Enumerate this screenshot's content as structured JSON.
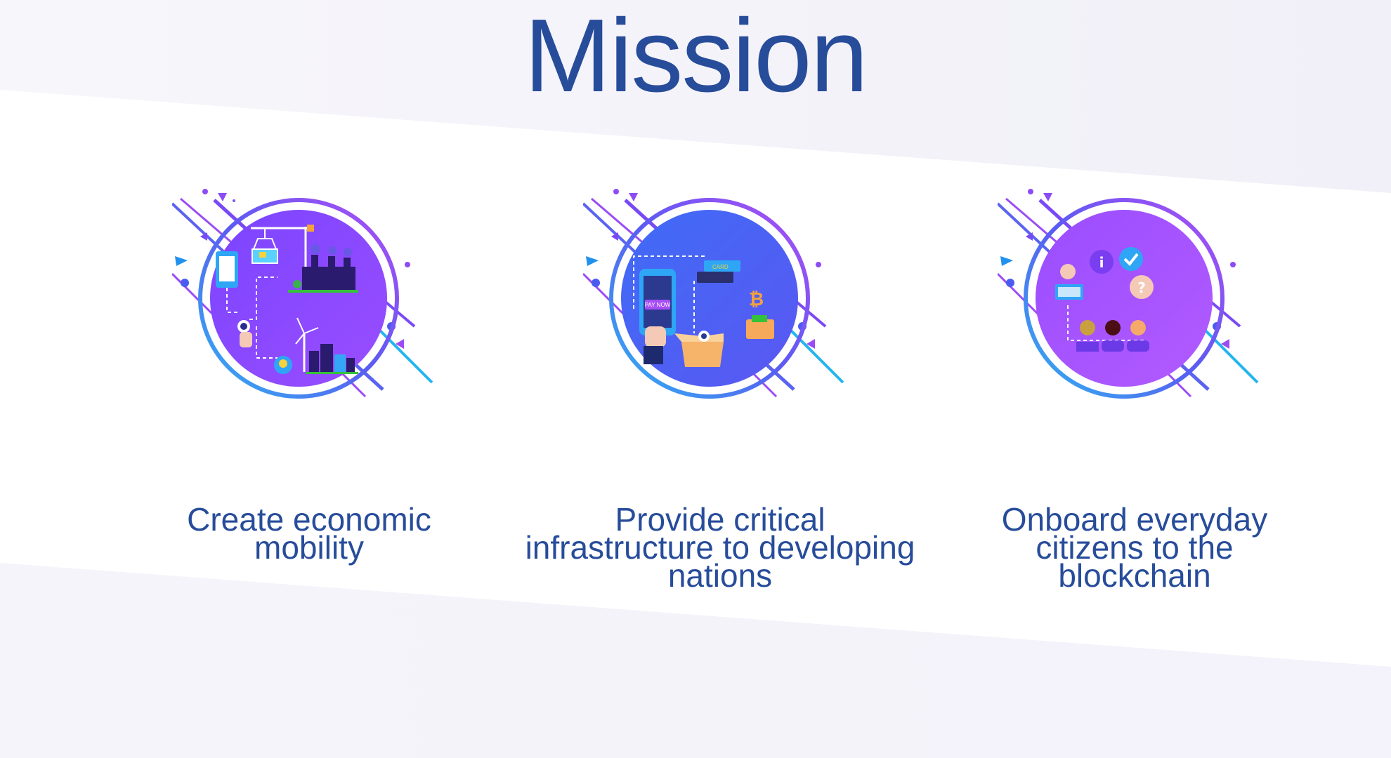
{
  "title": "Mission",
  "cards": [
    {
      "illustration_icon": "city-industry-icon",
      "caption_lines": [
        "Create economic",
        "mobility"
      ]
    },
    {
      "illustration_icon": "mobile-payment-icon",
      "pay_button_label": "PAY NOW",
      "card_label": "CARD",
      "caption_lines": [
        "Provide critical",
        "infrastructure to developing",
        "nations"
      ]
    },
    {
      "illustration_icon": "community-support-icon",
      "caption_lines": [
        "Onboard everyday",
        "citizens to the",
        "blockchain"
      ]
    }
  ],
  "colors": {
    "title": "#274c9a",
    "caption": "#274c9a",
    "circle_purple": "#8c4bff",
    "circle_blue": "#4a5cf0",
    "accent_cyan": "#22b8ef",
    "band_tint": "#f4f3fb"
  }
}
